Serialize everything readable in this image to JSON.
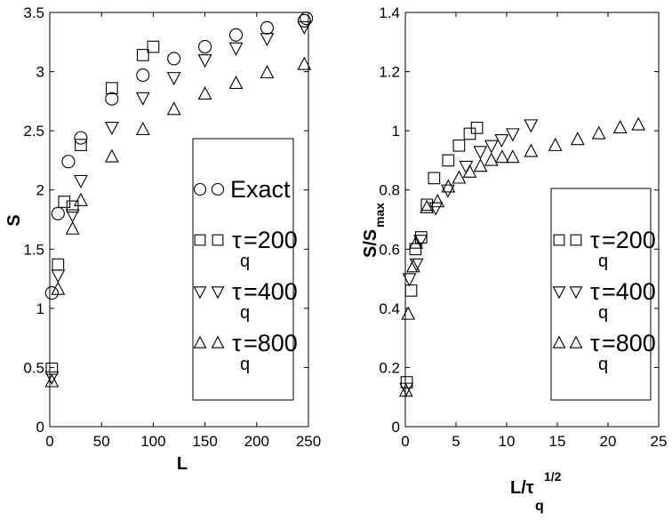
{
  "chart_data": [
    {
      "type": "scatter",
      "xlabel": "L",
      "ylabel": "S",
      "xlim": [
        0,
        250
      ],
      "ylim": [
        0,
        3.5
      ],
      "xticks": [
        "0",
        "50",
        "100",
        "150",
        "200",
        "250"
      ],
      "yticks": [
        "0",
        "0.5",
        "1",
        "1.5",
        "2",
        "2.5",
        "3",
        "3.5"
      ],
      "legend_position": "center-right",
      "legend": [
        {
          "marker": "circle",
          "prefix": "",
          "label": "Exact",
          "sub": ""
        },
        {
          "marker": "square",
          "prefix": "τ",
          "label": "=200",
          "sub": "q"
        },
        {
          "marker": "triangle-down",
          "prefix": "τ",
          "label": "=400",
          "sub": "q"
        },
        {
          "marker": "triangle-up",
          "prefix": "τ",
          "label": "=800",
          "sub": "q"
        }
      ],
      "series": [
        {
          "marker": "circle",
          "x": [
            2,
            8,
            18,
            30,
            60,
            90,
            120,
            150,
            180,
            210,
            246,
            248
          ],
          "y": [
            1.13,
            1.8,
            2.24,
            2.44,
            2.77,
            2.97,
            3.11,
            3.21,
            3.31,
            3.37,
            3.43,
            3.45
          ]
        },
        {
          "marker": "square",
          "x": [
            2,
            8,
            14,
            22,
            30,
            60,
            90,
            100
          ],
          "y": [
            0.49,
            1.37,
            1.9,
            1.86,
            2.38,
            2.86,
            3.14,
            3.21
          ]
        },
        {
          "marker": "triangle-down",
          "x": [
            2,
            8,
            22,
            30,
            60,
            90,
            120,
            150,
            180,
            210,
            246
          ],
          "y": [
            0.42,
            1.28,
            1.79,
            2.08,
            2.53,
            2.78,
            2.95,
            3.1,
            3.2,
            3.28,
            3.38
          ]
        },
        {
          "marker": "triangle-up",
          "x": [
            2,
            8,
            22,
            30,
            60,
            90,
            120,
            150,
            180,
            210,
            246
          ],
          "y": [
            0.38,
            1.16,
            1.67,
            1.91,
            2.28,
            2.51,
            2.68,
            2.81,
            2.9,
            2.99,
            3.06
          ]
        }
      ]
    },
    {
      "type": "scatter",
      "xlabel": "L/τ",
      "xlabel_sup": "1/2",
      "xlabel_sub": "q",
      "ylabel": "S/S",
      "ylabel_sub": "max",
      "xlim": [
        0,
        25
      ],
      "ylim": [
        0,
        1.4
      ],
      "xticks": [
        "0",
        "5",
        "10",
        "15",
        "20",
        "25"
      ],
      "yticks": [
        "0",
        "0.2",
        "0.4",
        "0.6",
        "0.8",
        "1",
        "1.2",
        "1.4"
      ],
      "legend_position": "center-right",
      "legend": [
        {
          "marker": "square",
          "prefix": "τ",
          "label": "=200",
          "sub": "q"
        },
        {
          "marker": "triangle-down",
          "prefix": "τ",
          "label": "=400",
          "sub": "q"
        },
        {
          "marker": "triangle-up",
          "prefix": "τ",
          "label": "=800",
          "sub": "q"
        }
      ],
      "series": [
        {
          "marker": "square",
          "x": [
            0.14,
            0.57,
            1.0,
            1.56,
            2.13,
            2.84,
            4.24,
            5.3,
            6.36,
            7.07
          ],
          "y": [
            0.15,
            0.46,
            0.6,
            0.64,
            0.75,
            0.84,
            0.9,
            0.95,
            0.99,
            1.01
          ]
        },
        {
          "marker": "triangle-down",
          "x": [
            0.1,
            0.4,
            1.1,
            1.5,
            3.0,
            4.2,
            6.0,
            7.4,
            8.5,
            9.5,
            10.6,
            12.4
          ],
          "y": [
            0.13,
            0.5,
            0.55,
            0.63,
            0.74,
            0.8,
            0.88,
            0.93,
            0.95,
            0.97,
            0.99,
            1.02
          ]
        },
        {
          "marker": "triangle-up",
          "x": [
            0.07,
            0.28,
            0.78,
            1.06,
            2.12,
            3.18,
            4.24,
            5.3,
            6.36,
            7.42,
            8.49,
            9.55,
            10.6,
            12.4,
            14.8,
            17.0,
            19.1,
            21.2,
            23.0
          ],
          "y": [
            0.12,
            0.38,
            0.54,
            0.62,
            0.74,
            0.76,
            0.81,
            0.84,
            0.86,
            0.88,
            0.9,
            0.91,
            0.91,
            0.93,
            0.95,
            0.97,
            0.99,
            1.01,
            1.02
          ]
        }
      ]
    }
  ]
}
